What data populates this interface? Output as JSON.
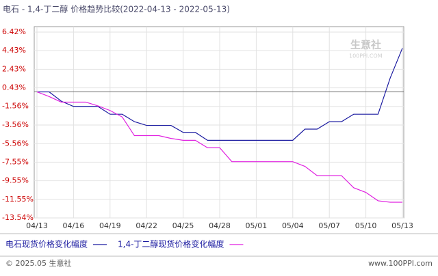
{
  "chart_data": {
    "type": "line",
    "title": "电石 - 1,4-丁二醇 价格趋势比较(2022-04-13 - 2022-05-13)",
    "watermark": "生意社",
    "watermark_url": "100PPI.COM",
    "footer_left": "© 2025.05 生意社",
    "footer_right": "www.100PPI.com",
    "categories": [
      "04/13",
      null,
      null,
      "04/16",
      null,
      null,
      "04/19",
      null,
      null,
      "04/22",
      null,
      null,
      "04/25",
      null,
      null,
      "04/28",
      null,
      null,
      "05/01",
      null,
      null,
      "05/04",
      null,
      null,
      "05/07",
      null,
      null,
      "05/10",
      null,
      null,
      "05/13"
    ],
    "series": [
      {
        "name": "电石现货价格变化幅度",
        "color": "#1a1aa0",
        "values": [
          0,
          0,
          -1.0,
          -1.56,
          -1.56,
          -1.56,
          -2.4,
          -2.4,
          -3.2,
          -3.6,
          -3.6,
          -3.6,
          -4.35,
          -4.35,
          -5.2,
          -5.2,
          -5.2,
          -5.2,
          -5.2,
          -5.2,
          -5.2,
          -5.2,
          -4.0,
          -4.0,
          -3.2,
          -3.2,
          -2.4,
          -2.4,
          -2.4,
          1.5,
          4.7
        ]
      },
      {
        "name": "1,4-丁二醇现货价格变化幅度",
        "color": "#e020e0",
        "values": [
          0,
          -0.5,
          -1.1,
          -1.1,
          -1.1,
          -1.5,
          -2.0,
          -2.7,
          -4.7,
          -4.7,
          -4.7,
          -5.0,
          -5.2,
          -5.2,
          -6.0,
          -6.0,
          -7.5,
          -7.5,
          -7.5,
          -7.5,
          -7.5,
          -7.5,
          -8.0,
          -9.0,
          -9.0,
          -9.0,
          -10.3,
          -10.8,
          -11.7,
          -11.85,
          -11.85
        ]
      }
    ],
    "ylim": [
      -13.54,
      6.42
    ],
    "yticks": [
      {
        "value": 6.42,
        "label": "6.42%"
      },
      {
        "value": 4.43,
        "label": "4.43%"
      },
      {
        "value": 2.43,
        "label": "2.43%"
      },
      {
        "value": 0.43,
        "label": "0.43%"
      },
      {
        "value": -1.56,
        "label": "-1.56%"
      },
      {
        "value": -3.56,
        "label": "-3.56%"
      },
      {
        "value": -5.56,
        "label": "-5.56%"
      },
      {
        "value": -7.55,
        "label": "-7.55%"
      },
      {
        "value": -9.55,
        "label": "-9.55%"
      },
      {
        "value": -11.55,
        "label": "-11.55%"
      },
      {
        "value": -13.54,
        "label": "-13.54%"
      }
    ],
    "grid": true
  }
}
